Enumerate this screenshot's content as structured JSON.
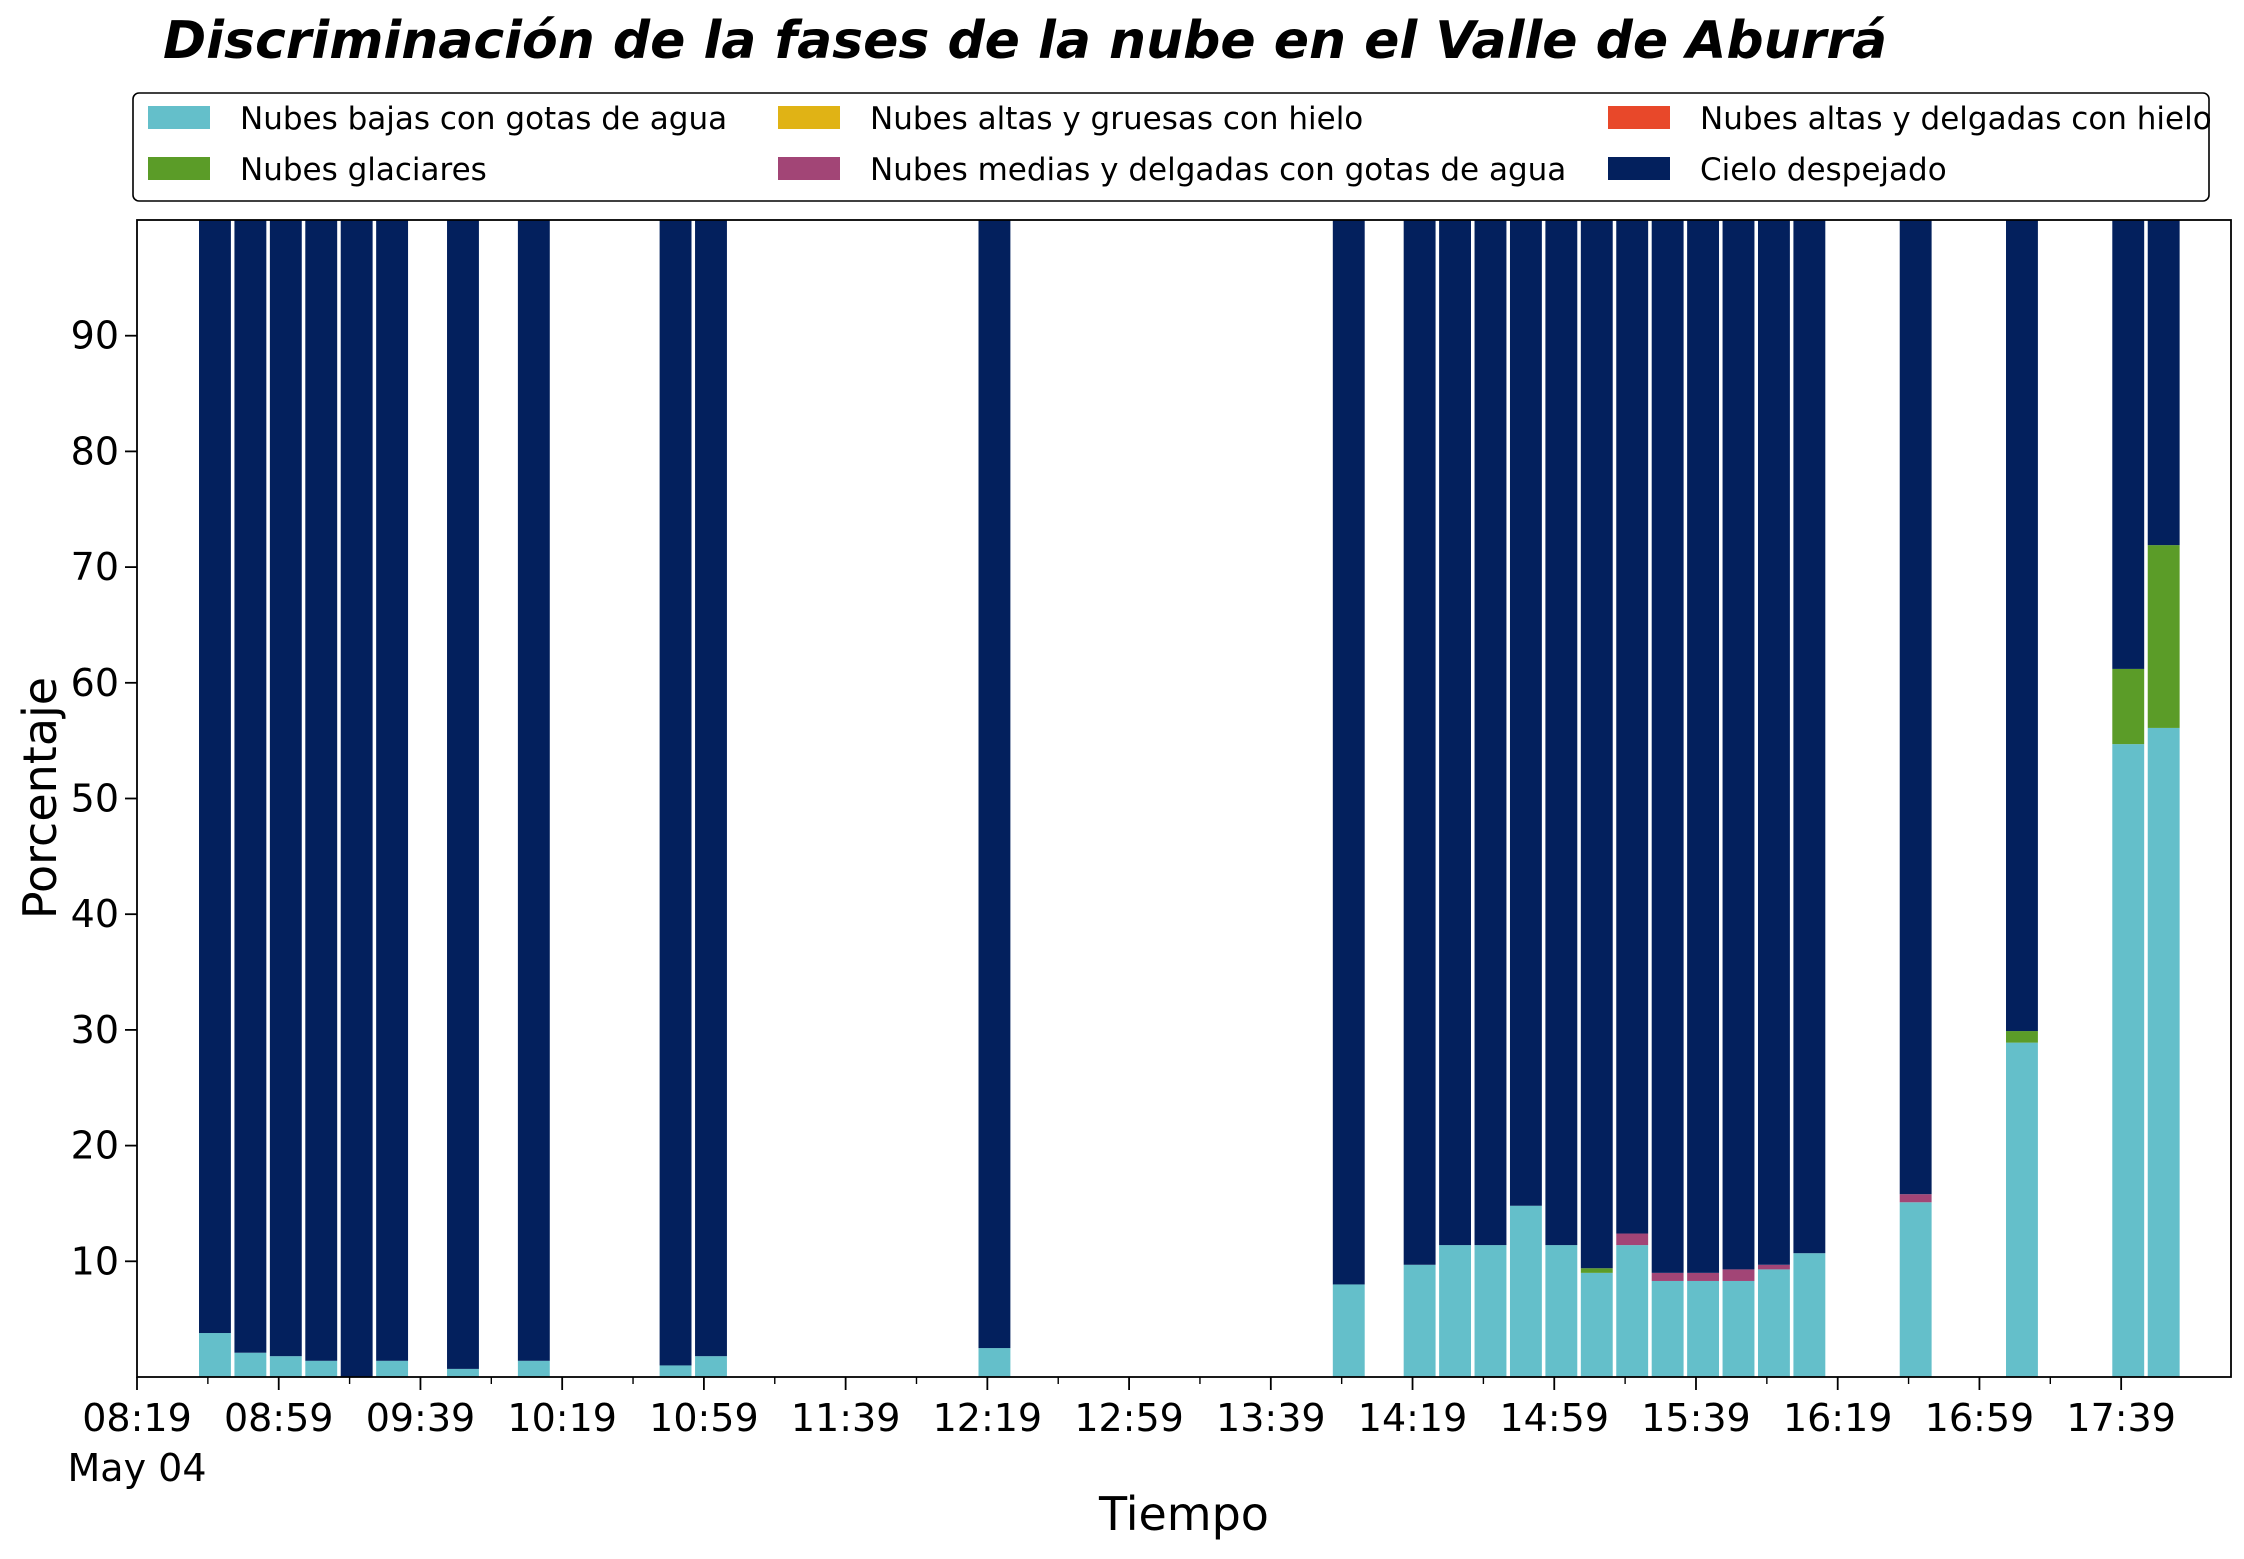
{
  "chart_data": {
    "type": "bar",
    "stacked": true,
    "title": "Discriminación de la fases de la nube en el Valle de Aburrá",
    "xlabel": "Tiempo",
    "ylabel": "Porcentaje",
    "ylim": [
      0,
      100
    ],
    "yticks": [
      10,
      20,
      30,
      40,
      50,
      60,
      70,
      80,
      90
    ],
    "xlim": [
      "08:19",
      "18:10"
    ],
    "xtick_labels": [
      "08:19",
      "08:59",
      "09:39",
      "10:19",
      "10:59",
      "11:39",
      "12:19",
      "12:59",
      "13:39",
      "14:19",
      "14:59",
      "15:39",
      "16:19",
      "16:59",
      "17:39"
    ],
    "xtick_date_label": "May 04",
    "x_unit": "time (HH:MM), bar interval 10 min",
    "legend": {
      "position": "top, above plot area",
      "columns": 3
    },
    "grid": false,
    "x": [
      "08:41",
      "08:51",
      "09:01",
      "09:11",
      "09:21",
      "09:31",
      "09:51",
      "10:11",
      "10:51",
      "11:01",
      "12:21",
      "14:01",
      "14:21",
      "14:31",
      "14:41",
      "14:51",
      "15:01",
      "15:11",
      "15:21",
      "15:31",
      "15:41",
      "15:51",
      "16:01",
      "16:11",
      "16:41",
      "17:11",
      "17:41",
      "17:51"
    ],
    "series": [
      {
        "name": "Nubes bajas con gotas de agua",
        "color": "#64BFCA",
        "values": [
          3.8,
          2.1,
          1.8,
          1.4,
          0.0,
          1.4,
          0.7,
          1.4,
          1.0,
          1.8,
          2.5,
          8.0,
          9.7,
          11.4,
          11.4,
          14.8,
          11.4,
          9.0,
          11.4,
          8.3,
          8.3,
          8.3,
          9.3,
          10.7,
          15.1,
          28.9,
          54.7,
          56.1
        ]
      },
      {
        "name": "Nubes glaciares",
        "color": "#5B9C28",
        "values": [
          0,
          0,
          0,
          0,
          0,
          0,
          0,
          0,
          0,
          0,
          0,
          0,
          0,
          0,
          0,
          0,
          0,
          0.4,
          0,
          0,
          0,
          0,
          0,
          0,
          0,
          1.0,
          6.5,
          15.8
        ]
      },
      {
        "name": "Nubes altas y gruesas con hielo",
        "color": "#E0B315",
        "values": [
          0,
          0,
          0,
          0,
          0,
          0,
          0,
          0,
          0,
          0,
          0,
          0,
          0,
          0,
          0,
          0,
          0,
          0,
          0,
          0,
          0,
          0,
          0,
          0,
          0,
          0,
          0,
          0
        ]
      },
      {
        "name": "Nubes medias y delgadas con gotas de agua",
        "color": "#A24576",
        "values": [
          0,
          0,
          0,
          0,
          0,
          0,
          0,
          0,
          0,
          0,
          0,
          0,
          0,
          0,
          0,
          0,
          0,
          0,
          1.0,
          0.7,
          0.7,
          1.0,
          0.4,
          0,
          0.7,
          0,
          0,
          0
        ]
      },
      {
        "name": "Nubes altas y delgadas con hielo",
        "color": "#E8482A",
        "values": [
          0,
          0,
          0,
          0,
          0,
          0,
          0,
          0,
          0,
          0,
          0,
          0,
          0,
          0,
          0,
          0,
          0,
          0,
          0,
          0,
          0,
          0,
          0,
          0,
          0,
          0,
          0,
          0
        ]
      },
      {
        "name": "Cielo despejado",
        "color": "#03205D",
        "values": [
          96.2,
          97.9,
          98.2,
          98.6,
          100.0,
          98.6,
          99.3,
          98.6,
          99.0,
          98.2,
          97.5,
          92.0,
          90.3,
          88.6,
          88.6,
          85.2,
          88.6,
          90.6,
          87.6,
          91.0,
          91.0,
          90.7,
          90.3,
          89.3,
          84.2,
          70.1,
          38.8,
          28.1
        ]
      }
    ]
  }
}
